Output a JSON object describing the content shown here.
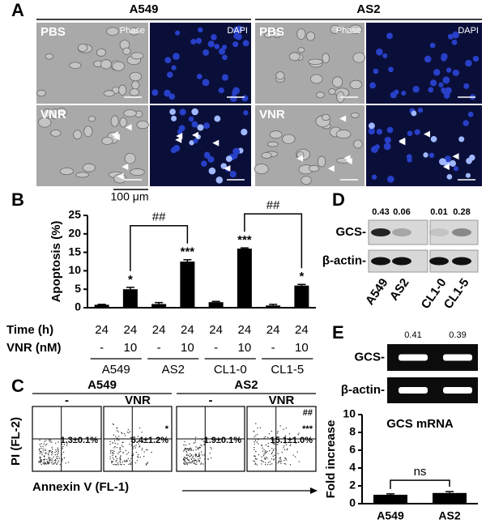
{
  "panel_a": {
    "label": "A",
    "groups": [
      "A549",
      "AS2"
    ],
    "phase": "Phase",
    "dapi": "DAPI",
    "treatments": [
      "PBS",
      "VNR"
    ],
    "scale_bar": "100 μm"
  },
  "panel_b": {
    "label": "B",
    "time_label": "Time (h)",
    "dose_label": "VNR (nM)",
    "time": [
      24,
      24,
      24,
      24,
      24,
      24,
      24,
      24
    ],
    "dose": [
      "-",
      "10",
      "-",
      "10",
      "-",
      "10",
      "-",
      "10"
    ],
    "groups": [
      "A549",
      "AS2",
      "CL1-0",
      "CL1-5"
    ]
  },
  "panel_c": {
    "label": "C",
    "groups": [
      "A549",
      "AS2"
    ],
    "conditions": [
      "-",
      "VNR",
      "-",
      "VNR"
    ],
    "quadrant_values": [
      "1.3±0.1%",
      "5.4±1.2%",
      "1.9±0.1%",
      "15.1±1.0%"
    ],
    "significance": [
      null,
      "*",
      null,
      "***"
    ],
    "vs_a549": [
      null,
      null,
      null,
      "##"
    ],
    "y_label": "PI (FL-2)",
    "x_label": "Annexin V (FL-1)"
  },
  "panel_d": {
    "label": "D",
    "ratios": [
      0.43,
      0.06,
      0.01,
      0.28
    ],
    "bands": [
      "GCS-",
      "β-actin-"
    ],
    "lanes": [
      "A549",
      "AS2",
      "CL1-0",
      "CL1-5"
    ]
  },
  "panel_e": {
    "label": "E",
    "ratios": [
      0.41,
      0.39
    ],
    "bands": [
      "GCS-",
      "β-actin-"
    ]
  },
  "chart_data": [
    {
      "type": "bar",
      "y_label": "Apoptosis (%)",
      "values": [
        0.8,
        5,
        1.0,
        12.5,
        1.5,
        16,
        0.6,
        6
      ],
      "errors": [
        0.1,
        0.5,
        0.4,
        0.5,
        0.2,
        0.2,
        0.3,
        0.3
      ],
      "color": "#000000",
      "significance": [
        null,
        "*",
        null,
        "***",
        null,
        "***",
        null,
        "*"
      ],
      "brackets": [
        {
          "from": 1,
          "to": 3,
          "label": "##"
        },
        {
          "from": 5,
          "to": 7,
          "label": "##"
        }
      ],
      "ylim": [
        0,
        25
      ],
      "yticks": [
        0,
        5,
        10,
        15,
        20,
        25
      ]
    },
    {
      "type": "bar",
      "title": "GCS mRNA",
      "y_label": "Fold increase",
      "categories": [
        "A549",
        "AS2"
      ],
      "values": [
        1.0,
        1.2
      ],
      "errors": [
        0.1,
        0.15
      ],
      "color": "#000000",
      "brackets": [
        {
          "from": 0,
          "to": 1,
          "label": "ns"
        }
      ],
      "ylim": [
        0,
        10
      ],
      "yticks": [
        0,
        2,
        4,
        6,
        8,
        10
      ]
    }
  ]
}
